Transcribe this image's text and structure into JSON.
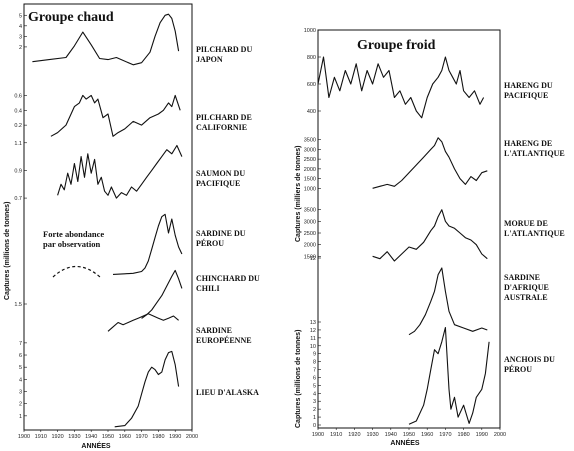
{
  "chart_data": [
    {
      "type": "line",
      "title": "Groupe chaud",
      "xlabel": "ANNÉES",
      "ylabel": "Captures (millions de tonnes)",
      "xlim": [
        1900,
        2000
      ],
      "x_ticks": [
        "1900",
        "1910",
        "1920",
        "1930",
        "1940",
        "1950",
        "1960",
        "1970",
        "1980",
        "1990",
        "2000"
      ],
      "annotation": "Forte abondance par observation",
      "series": [
        {
          "name": "PILCHARD DU JAPON",
          "band": [
            10,
            68
          ],
          "ylim": [
            0,
            5.5
          ],
          "y_ticks": [
            "5",
            "4",
            "3",
            "2"
          ],
          "x": [
            1905,
            1915,
            1925,
            1930,
            1935,
            1940,
            1945,
            1950,
            1955,
            1965,
            1970,
            1975,
            1978,
            1981,
            1984,
            1986,
            1988,
            1990,
            1992
          ],
          "values": [
            0.6,
            0.8,
            1.0,
            2.1,
            3.4,
            2.2,
            0.9,
            0.8,
            1.0,
            0.3,
            0.5,
            1.5,
            3.0,
            4.3,
            5.0,
            5.1,
            4.7,
            3.5,
            1.6
          ]
        },
        {
          "name": "PILCHARD DE CALIFORNIE",
          "band": [
            88,
            140
          ],
          "ylim": [
            0,
            0.7
          ],
          "y_ticks": [
            "0.6",
            "0.4",
            "0.2"
          ],
          "x": [
            1916,
            1920,
            1925,
            1930,
            1933,
            1935,
            1937,
            1940,
            1942,
            1944,
            1947,
            1950,
            1953,
            1956,
            1960,
            1965,
            1970,
            1975,
            1980,
            1983,
            1986,
            1988,
            1990,
            1993
          ],
          "values": [
            0.05,
            0.1,
            0.2,
            0.45,
            0.5,
            0.6,
            0.55,
            0.6,
            0.5,
            0.55,
            0.3,
            0.35,
            0.05,
            0.1,
            0.15,
            0.25,
            0.2,
            0.3,
            0.35,
            0.4,
            0.5,
            0.45,
            0.6,
            0.4
          ]
        },
        {
          "name": "SAUMON DU PACIFIQUE",
          "band": [
            140,
            205
          ],
          "ylim": [
            0.65,
            1.12
          ],
          "y_ticks": [
            "1.1",
            "0.9",
            "0.7"
          ],
          "x": [
            1920,
            1922,
            1924,
            1926,
            1928,
            1930,
            1932,
            1934,
            1936,
            1938,
            1940,
            1942,
            1944,
            1946,
            1948,
            1950,
            1952,
            1955,
            1958,
            1961,
            1964,
            1967,
            1970,
            1973,
            1976,
            1979,
            1982,
            1985,
            1988,
            1991,
            1994
          ],
          "values": [
            0.72,
            0.8,
            0.76,
            0.88,
            0.8,
            0.95,
            0.82,
            1.0,
            0.85,
            1.02,
            0.88,
            0.98,
            0.8,
            0.85,
            0.75,
            0.72,
            0.78,
            0.7,
            0.74,
            0.72,
            0.78,
            0.75,
            0.8,
            0.85,
            0.9,
            0.95,
            1.0,
            1.05,
            1.02,
            1.08,
            1.0
          ]
        },
        {
          "name": "SARDINE DU PÉROU",
          "band": [
            205,
            275
          ],
          "ylim": [
            0,
            6
          ],
          "x": [
            1953,
            1960,
            1965,
            1970,
            1972,
            1974,
            1976,
            1978,
            1980,
            1982,
            1984,
            1986,
            1988,
            1990,
            1992,
            1994
          ],
          "values": [
            0.05,
            0.1,
            0.15,
            0.3,
            0.6,
            1.2,
            2.2,
            3.2,
            4.2,
            5.0,
            5.2,
            3.6,
            4.8,
            3.4,
            2.4,
            1.8
          ]
        },
        {
          "name": "CHINCHARD DU CHILI",
          "band": [
            262,
            322
          ],
          "ylim": [
            0,
            5
          ],
          "y_ticks": [
            "1.5"
          ],
          "x": [
            1970,
            1973,
            1976,
            1979,
            1982,
            1985,
            1988,
            1990,
            1992,
            1994
          ],
          "values": [
            0.3,
            0.6,
            1.0,
            1.6,
            2.2,
            3.0,
            3.8,
            4.3,
            3.6,
            2.8
          ]
        },
        {
          "name": "SARDINE EUROPÉENNE",
          "band": [
            305,
            362
          ],
          "ylim": [
            0,
            1.3
          ],
          "x": [
            1950,
            1953,
            1956,
            1959,
            1962,
            1965,
            1968,
            1971,
            1974,
            1977,
            1980,
            1983,
            1986,
            1989,
            1992
          ],
          "values": [
            0.7,
            0.8,
            0.9,
            0.85,
            0.9,
            0.95,
            1.0,
            1.05,
            1.1,
            1.05,
            1.0,
            0.95,
            1.0,
            1.05,
            0.95
          ]
        },
        {
          "name": "LIEU D'ALASKA",
          "band": [
            338,
            428
          ],
          "ylim": [
            0,
            7.4
          ],
          "y_ticks": [
            "7",
            "6",
            "5",
            "4",
            "3",
            "2",
            "1"
          ],
          "x": [
            1954,
            1960,
            1964,
            1968,
            1970,
            1972,
            1974,
            1976,
            1978,
            1980,
            1982,
            1984,
            1986,
            1988,
            1990,
            1992
          ],
          "values": [
            0.1,
            0.2,
            0.8,
            1.8,
            2.8,
            3.8,
            4.6,
            5.0,
            4.8,
            4.4,
            4.6,
            5.6,
            6.2,
            6.3,
            5.2,
            3.4
          ]
        }
      ]
    },
    {
      "type": "line",
      "title": "Groupe froid",
      "xlabel": "ANNÉES",
      "ylabel": "Captures (milliers de tonnes)",
      "ylabel2": "Captures (millions de tonnes)",
      "xlim": [
        1900,
        2000
      ],
      "x_ticks": [
        "1900",
        "1910",
        "1920",
        "1930",
        "1940",
        "1950",
        "1960",
        "1970",
        "1980",
        "1990",
        "2000"
      ],
      "series": [
        {
          "name": "HARENG DU PACIFIQUE",
          "band": [
            30,
            138
          ],
          "ylim": [
            200,
            1000
          ],
          "y_ticks": [
            "1000",
            "800",
            "600",
            "400"
          ],
          "x": [
            1900,
            1903,
            1906,
            1909,
            1912,
            1915,
            1918,
            1921,
            1924,
            1927,
            1930,
            1933,
            1936,
            1939,
            1942,
            1945,
            1948,
            1951,
            1954,
            1957,
            1960,
            1963,
            1966,
            1968,
            1970,
            1972,
            1974,
            1976,
            1978,
            1980,
            1983,
            1986,
            1989,
            1991
          ],
          "values": [
            600,
            800,
            500,
            650,
            550,
            700,
            600,
            750,
            550,
            700,
            600,
            750,
            650,
            700,
            500,
            550,
            450,
            500,
            400,
            350,
            500,
            600,
            650,
            700,
            800,
            700,
            650,
            600,
            700,
            550,
            500,
            550,
            450,
            500
          ]
        },
        {
          "name": "HARENG DE L'ATLANTIQUE",
          "band": [
            130,
            198
          ],
          "ylim": [
            500,
            4000
          ],
          "y_ticks": [
            "3500",
            "3000",
            "2500",
            "2000",
            "1500",
            "1000"
          ],
          "x": [
            1930,
            1934,
            1938,
            1942,
            1946,
            1950,
            1954,
            1958,
            1962,
            1964,
            1966,
            1968,
            1970,
            1972,
            1975,
            1978,
            1981,
            1984,
            1987,
            1990,
            1993
          ],
          "values": [
            1000,
            1100,
            1200,
            1100,
            1400,
            1800,
            2200,
            2600,
            3000,
            3200,
            3600,
            3400,
            2900,
            2600,
            2000,
            1500,
            1200,
            1600,
            1400,
            1800,
            1900
          ]
        },
        {
          "name": "MORUE DE L'ATLANTIQUE",
          "band": [
            198,
            268
          ],
          "ylim": [
            1000,
            4000
          ],
          "y_ticks": [
            "3500",
            "3000",
            "2500",
            "2000",
            "1500"
          ],
          "x": [
            1930,
            1934,
            1938,
            1942,
            1946,
            1950,
            1954,
            1958,
            1962,
            1964,
            1966,
            1968,
            1970,
            1972,
            1975,
            1978,
            1981,
            1984,
            1987,
            1990,
            1993
          ],
          "values": [
            1500,
            1400,
            1700,
            1300,
            1600,
            1900,
            1800,
            2100,
            2600,
            2800,
            3200,
            3500,
            3000,
            2800,
            2700,
            2500,
            2300,
            2200,
            2000,
            1600,
            1400
          ]
        },
        {
          "name": "SARDINE D'AFRIQUE AUSTRALE",
          "band": [
            258,
            338
          ],
          "ylim": [
            0,
            12
          ],
          "y_ticks": [
            "12"
          ],
          "x": [
            1950,
            1953,
            1956,
            1959,
            1962,
            1964,
            1966,
            1968,
            1970,
            1972,
            1975,
            1980,
            1985,
            1990,
            1993
          ],
          "values": [
            0.5,
            1.0,
            2.0,
            3.5,
            5.5,
            7.0,
            9.5,
            10.5,
            7.0,
            4.0,
            2.0,
            1.5,
            1.0,
            1.5,
            1.2
          ]
        },
        {
          "name": "ANCHOIS DU PÉROU",
          "band": [
            322,
            425
          ],
          "ylim": [
            0,
            13
          ],
          "y_ticks": [
            "13",
            "12",
            "11",
            "10",
            "9",
            "8",
            "7",
            "6",
            "5",
            "4",
            "3",
            "2",
            "1",
            "0"
          ],
          "x": [
            1950,
            1954,
            1958,
            1960,
            1962,
            1964,
            1966,
            1968,
            1970,
            1972,
            1973,
            1975,
            1977,
            1980,
            1983,
            1985,
            1987,
            1990,
            1992,
            1994
          ],
          "values": [
            0.1,
            0.5,
            2.5,
            4.5,
            7.0,
            9.5,
            9.0,
            10.5,
            12.3,
            4.5,
            2.0,
            3.5,
            1.0,
            2.5,
            0.2,
            1.5,
            3.5,
            4.5,
            6.5,
            10.5
          ]
        }
      ]
    }
  ]
}
